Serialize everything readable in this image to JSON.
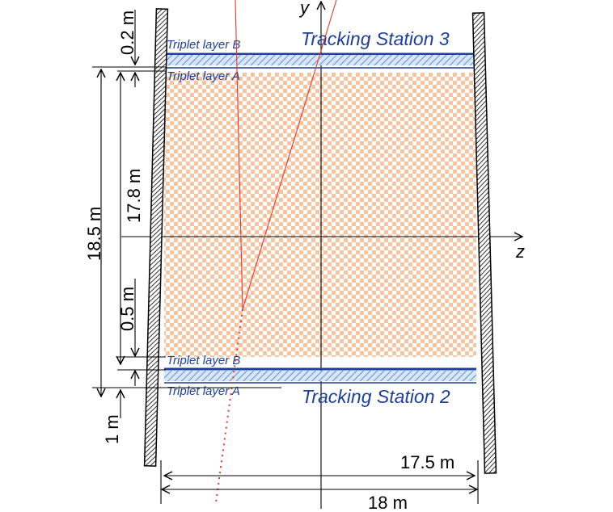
{
  "stations": {
    "top": {
      "title": "Tracking Station 3",
      "layer_b": "Triplet layer B",
      "layer_a": "Triplet layer A"
    },
    "bottom": {
      "title": "Tracking Station 2",
      "layer_b": "Triplet layer B",
      "layer_a": "Triplet layer A"
    }
  },
  "dimensions": {
    "gap_top": "0.2 m",
    "height_outer": "18.5 m",
    "height_inner": "17.8 m",
    "gap_between_layers": "0.5 m",
    "offset_bottom": "1 m",
    "inner_width": "17.5 m",
    "outer_width": "18 m"
  },
  "axes": {
    "y": "y",
    "z": "z"
  },
  "colors": {
    "station_blue": "#1f3f9a",
    "hatch_blue": "#5a8fd8",
    "volume_orange": "#f7c4a2",
    "track_red": "#e8372c",
    "wall_hatch": "#333333"
  }
}
